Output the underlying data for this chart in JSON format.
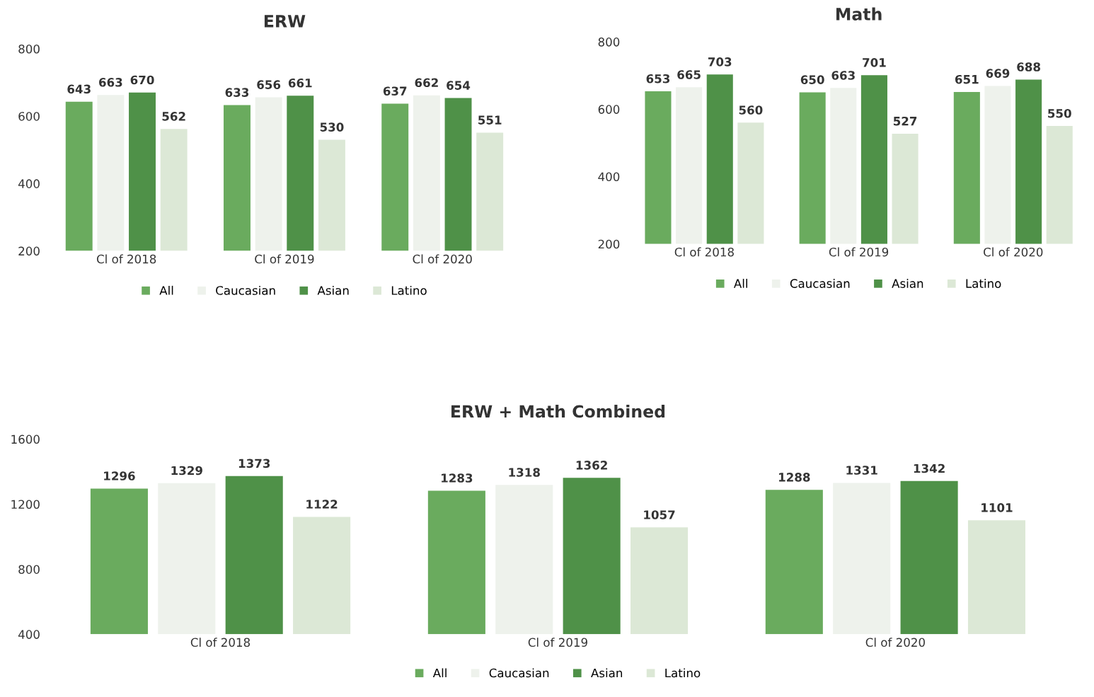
{
  "chart_data": [
    {
      "type": "bar",
      "title": "ERW",
      "categories": [
        "Cl of 2018",
        "Cl of 2019",
        "Cl of 2020"
      ],
      "ylim": [
        200,
        800
      ],
      "yticks": [
        200,
        400,
        600,
        800
      ],
      "grid": false,
      "legend": "bottom",
      "data_labels": true,
      "series": [
        {
          "name": "All",
          "color": "#6aab5e",
          "values": [
            643,
            633,
            637
          ]
        },
        {
          "name": "Caucasian",
          "color": "#eef2ec",
          "values": [
            663,
            656,
            662
          ]
        },
        {
          "name": "Asian",
          "color": "#4f9148",
          "values": [
            670,
            661,
            654
          ]
        },
        {
          "name": "Latino",
          "color": "#dce8d6",
          "values": [
            562,
            530,
            551
          ]
        }
      ]
    },
    {
      "type": "bar",
      "title": "Math",
      "categories": [
        "Cl of 2018",
        "Cl of 2019",
        "Cl of 2020"
      ],
      "ylim": [
        200,
        800
      ],
      "yticks": [
        200,
        400,
        600,
        800
      ],
      "grid": false,
      "legend": "bottom",
      "data_labels": true,
      "series": [
        {
          "name": "All",
          "color": "#6aab5e",
          "values": [
            653,
            650,
            651
          ]
        },
        {
          "name": "Caucasian",
          "color": "#eef2ec",
          "values": [
            665,
            663,
            669
          ]
        },
        {
          "name": "Asian",
          "color": "#4f9148",
          "values": [
            703,
            701,
            688
          ]
        },
        {
          "name": "Latino",
          "color": "#dce8d6",
          "values": [
            560,
            527,
            550
          ]
        }
      ]
    },
    {
      "type": "bar",
      "title": "ERW + Math Combined",
      "categories": [
        "Cl of 2018",
        "Cl of 2019",
        "Cl of 2020"
      ],
      "ylim": [
        400,
        1600
      ],
      "yticks": [
        400,
        800,
        1200,
        1600
      ],
      "grid": false,
      "legend": "bottom",
      "data_labels": true,
      "series": [
        {
          "name": "All",
          "color": "#6aab5e",
          "values": [
            1296,
            1283,
            1288
          ]
        },
        {
          "name": "Caucasian",
          "color": "#eef2ec",
          "values": [
            1329,
            1318,
            1331
          ]
        },
        {
          "name": "Asian",
          "color": "#4f9148",
          "values": [
            1373,
            1362,
            1342
          ]
        },
        {
          "name": "Latino",
          "color": "#dce8d6",
          "values": [
            1122,
            1057,
            1101
          ]
        }
      ]
    }
  ]
}
